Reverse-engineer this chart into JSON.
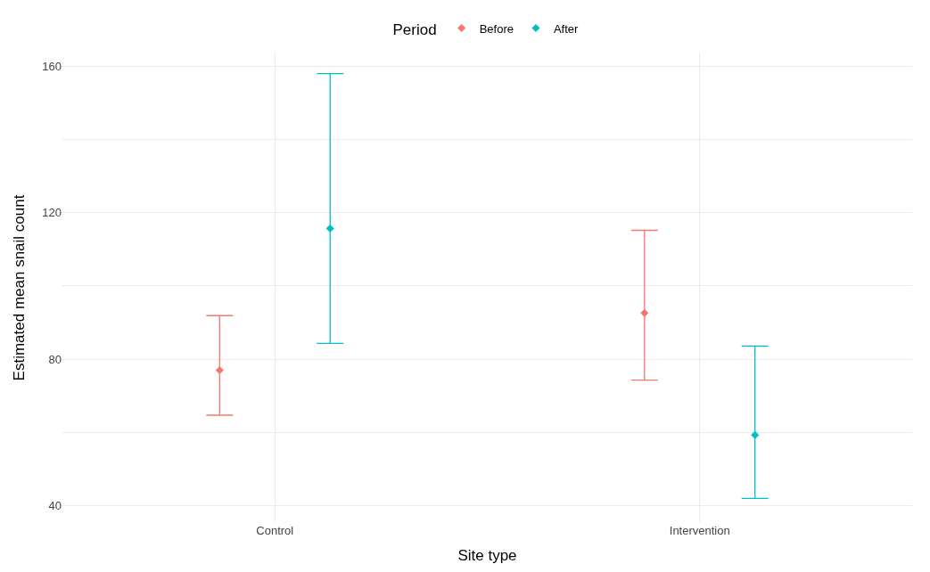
{
  "chart_data": {
    "type": "scatter",
    "xlabel": "Site type",
    "ylabel": "Estimated mean snail count",
    "legend_title": "Period",
    "categories": [
      "Control",
      "Intervention"
    ],
    "series": [
      {
        "name": "Before",
        "color": "#f8766d",
        "values": [
          77.0,
          92.6
        ],
        "errors": [
          [
            64.7,
            91.9
          ],
          [
            74.3,
            115.2
          ]
        ]
      },
      {
        "name": "After",
        "color": "#00bfc4",
        "values": [
          115.7,
          59.3
        ],
        "errors": [
          [
            84.3,
            158.0
          ],
          [
            42.0,
            83.6
          ]
        ]
      }
    ],
    "ylim": [
      35.5,
      163.5
    ],
    "yticks": [
      40,
      {
        "value": 60,
        "label": null
      },
      80,
      {
        "value": 100,
        "label": null
      },
      120,
      {
        "value": 140,
        "label": null
      },
      160
    ],
    "grid": true,
    "legend": "top",
    "marker": "diamond"
  }
}
